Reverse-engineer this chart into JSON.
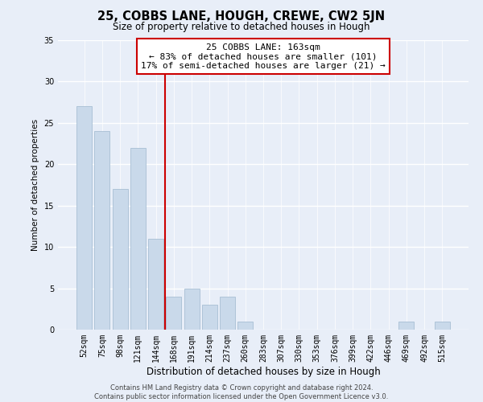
{
  "title": "25, COBBS LANE, HOUGH, CREWE, CW2 5JN",
  "subtitle": "Size of property relative to detached houses in Hough",
  "xlabel": "Distribution of detached houses by size in Hough",
  "ylabel": "Number of detached properties",
  "bar_labels": [
    "52sqm",
    "75sqm",
    "98sqm",
    "121sqm",
    "144sqm",
    "168sqm",
    "191sqm",
    "214sqm",
    "237sqm",
    "260sqm",
    "283sqm",
    "307sqm",
    "330sqm",
    "353sqm",
    "376sqm",
    "399sqm",
    "422sqm",
    "446sqm",
    "469sqm",
    "492sqm",
    "515sqm"
  ],
  "bar_values": [
    27,
    24,
    17,
    22,
    11,
    4,
    5,
    3,
    4,
    1,
    0,
    0,
    0,
    0,
    0,
    0,
    0,
    0,
    1,
    0,
    1
  ],
  "bar_color": "#c9d9ea",
  "bar_edge_color": "#a8bfd4",
  "vline_color": "#cc0000",
  "annotation_lines": [
    "25 COBBS LANE: 163sqm",
    "← 83% of detached houses are smaller (101)",
    "17% of semi-detached houses are larger (21) →"
  ],
  "annotation_box_color": "#ffffff",
  "annotation_box_edge": "#cc0000",
  "ylim": [
    0,
    35
  ],
  "yticks": [
    0,
    5,
    10,
    15,
    20,
    25,
    30,
    35
  ],
  "background_color": "#e8eef8",
  "plot_bg_color": "#e8eef8",
  "grid_color": "#ffffff",
  "footer_lines": [
    "Contains HM Land Registry data © Crown copyright and database right 2024.",
    "Contains public sector information licensed under the Open Government Licence v3.0."
  ],
  "title_fontsize": 10.5,
  "subtitle_fontsize": 8.5,
  "xlabel_fontsize": 8.5,
  "ylabel_fontsize": 7.5,
  "tick_fontsize": 7,
  "annotation_fontsize": 8,
  "footer_fontsize": 6
}
